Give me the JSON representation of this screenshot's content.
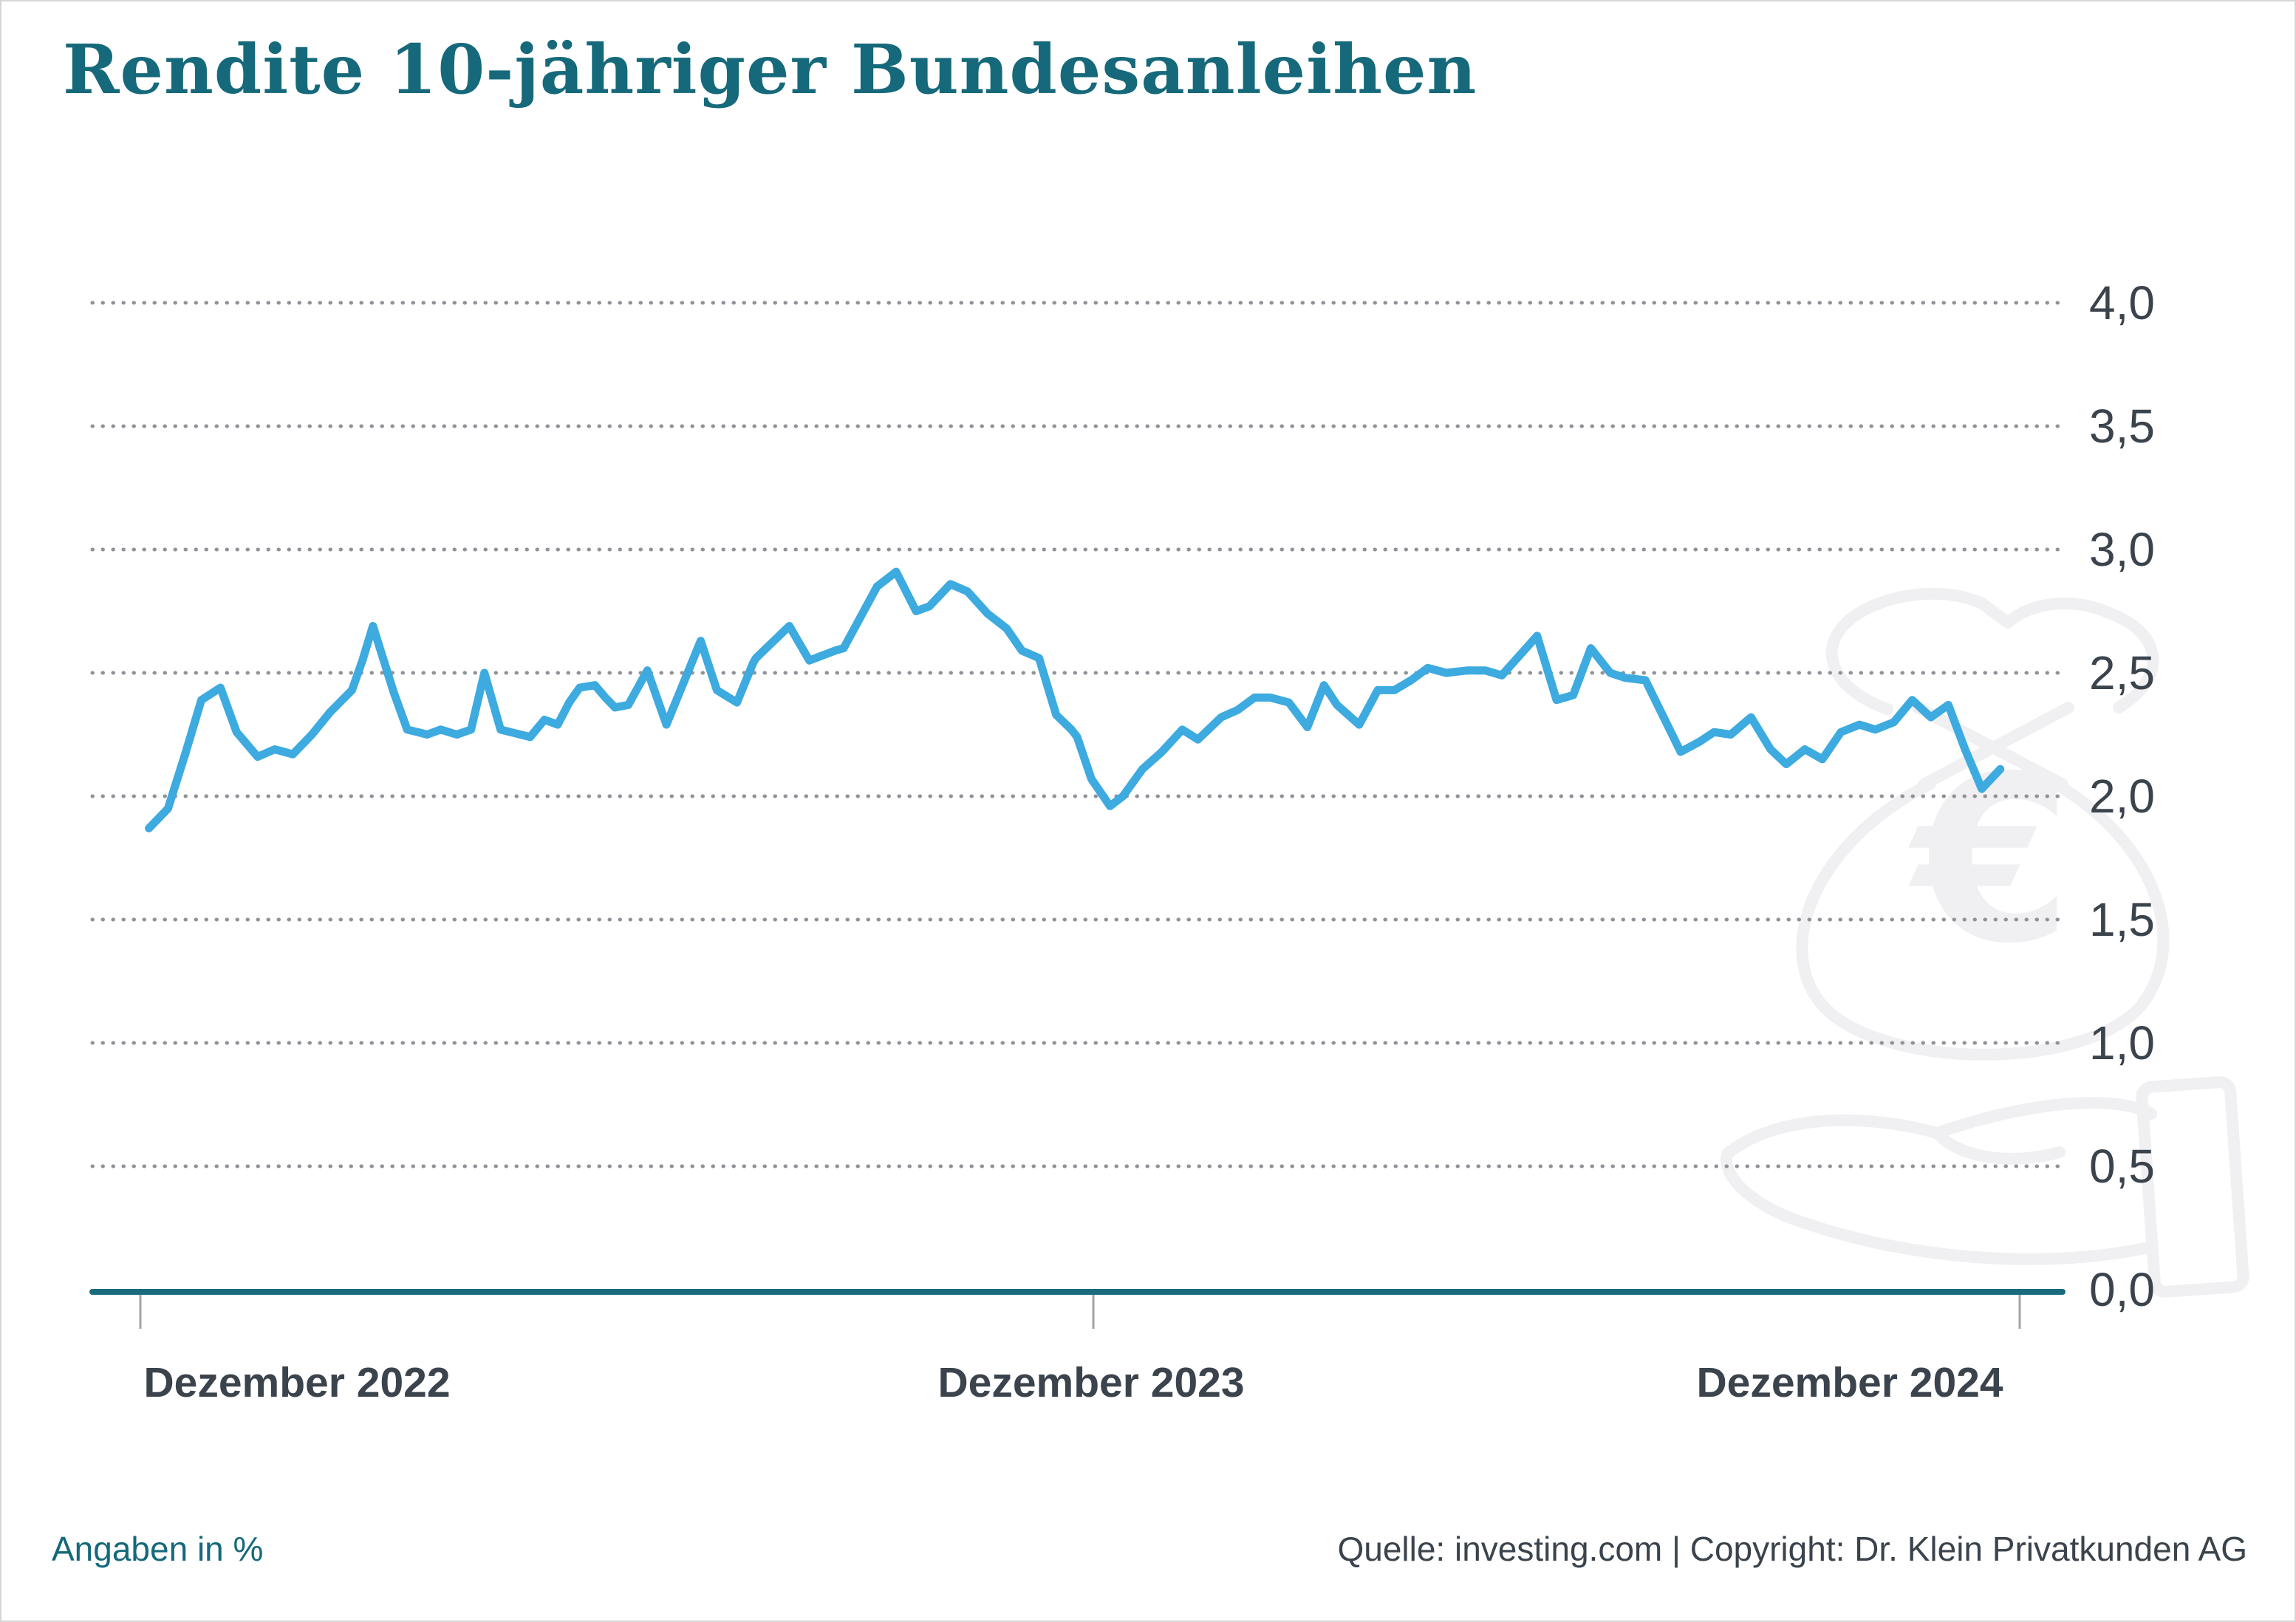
{
  "page": {
    "title": "Rendite 10-jähriger Bundesanleihen"
  },
  "footer": {
    "left_note": "Angaben in %",
    "source": "Quelle: investing.com | Copyright: Dr. Klein Privatkunden AG"
  },
  "colors": {
    "title_teal": "#15697A",
    "line_blue": "#3DAAE0",
    "axis_teal": "#1A6B7D",
    "label_dark": "#3B434C",
    "grid_dot_gray": "#8F9398",
    "tick_gray": "#A0A4A9",
    "watermark_gray": "#F0F0F2",
    "background": "#FFFFFF"
  },
  "icons": {
    "watermark": "money-bag-euro-in-hand-icon",
    "euro_symbol": "€"
  },
  "chart_data": {
    "type": "line",
    "title": "Rendite 10-jähriger Bundesanleihen",
    "xlabel": "",
    "ylabel": "",
    "unit": "%",
    "unit_note": "Angaben in %",
    "legend": "none",
    "grid": "dotted-horizontal",
    "y_axis": {
      "min": 0,
      "max": 4,
      "step": 0.5,
      "tick_labels": [
        "4,0",
        "3,5",
        "3,0",
        "2,5",
        "2,0",
        "1,5",
        "1,0",
        "0,5",
        "0,0"
      ],
      "tick_values": [
        4,
        3.5,
        3,
        2.5,
        2,
        1.5,
        1,
        0.5,
        0
      ]
    },
    "x_axis": {
      "tick_labels": [
        "Dezember 2022",
        "Dezember 2023",
        "Dezember 2024"
      ],
      "tick_values_years": [
        0,
        1,
        2
      ]
    },
    "series": [
      {
        "name": "Rendite 10-jähriger Bundesanleihen in %",
        "points_t_years_value_pct": [
          [
            0.009,
            1.87
          ],
          [
            0.029,
            1.95
          ],
          [
            0.047,
            2.17
          ],
          [
            0.064,
            2.39
          ],
          [
            0.084,
            2.44
          ],
          [
            0.101,
            2.26
          ],
          [
            0.123,
            2.16
          ],
          [
            0.141,
            2.19
          ],
          [
            0.16,
            2.17
          ],
          [
            0.18,
            2.25
          ],
          [
            0.199,
            2.34
          ],
          [
            0.222,
            2.43
          ],
          [
            0.233,
            2.55
          ],
          [
            0.244,
            2.69
          ],
          [
            0.266,
            2.42
          ],
          [
            0.28,
            2.27
          ],
          [
            0.291,
            2.26
          ],
          [
            0.301,
            2.25
          ],
          [
            0.315,
            2.27
          ],
          [
            0.332,
            2.25
          ],
          [
            0.347,
            2.27
          ],
          [
            0.361,
            2.5
          ],
          [
            0.378,
            2.27
          ],
          [
            0.409,
            2.24
          ],
          [
            0.424,
            2.31
          ],
          [
            0.438,
            2.29
          ],
          [
            0.45,
            2.38
          ],
          [
            0.461,
            2.44
          ],
          [
            0.477,
            2.45
          ],
          [
            0.488,
            2.4
          ],
          [
            0.498,
            2.36
          ],
          [
            0.512,
            2.37
          ],
          [
            0.532,
            2.51
          ],
          [
            0.552,
            2.29
          ],
          [
            0.588,
            2.63
          ],
          [
            0.605,
            2.43
          ],
          [
            0.626,
            2.38
          ],
          [
            0.643,
            2.54
          ],
          [
            0.646,
            2.56
          ],
          [
            0.681,
            2.69
          ],
          [
            0.702,
            2.55
          ],
          [
            0.729,
            2.59
          ],
          [
            0.738,
            2.6
          ],
          [
            0.773,
            2.85
          ],
          [
            0.793,
            2.91
          ],
          [
            0.814,
            2.75
          ],
          [
            0.828,
            2.77
          ],
          [
            0.85,
            2.86
          ],
          [
            0.868,
            2.83
          ],
          [
            0.889,
            2.74
          ],
          [
            0.909,
            2.68
          ],
          [
            0.925,
            2.59
          ],
          [
            0.943,
            2.56
          ],
          [
            0.961,
            2.33
          ],
          [
            0.977,
            2.27
          ],
          [
            0.983,
            2.24
          ],
          [
            0.998,
            2.07
          ],
          [
            1.018,
            1.96
          ],
          [
            1.032,
            2.0
          ],
          [
            1.053,
            2.11
          ],
          [
            1.074,
            2.18
          ],
          [
            1.096,
            2.27
          ],
          [
            1.113,
            2.23
          ],
          [
            1.138,
            2.32
          ],
          [
            1.156,
            2.35
          ],
          [
            1.174,
            2.4
          ],
          [
            1.191,
            2.4
          ],
          [
            1.211,
            2.38
          ],
          [
            1.231,
            2.28
          ],
          [
            1.249,
            2.45
          ],
          [
            1.263,
            2.37
          ],
          [
            1.287,
            2.29
          ],
          [
            1.307,
            2.43
          ],
          [
            1.325,
            2.43
          ],
          [
            1.343,
            2.47
          ],
          [
            1.361,
            2.52
          ],
          [
            1.381,
            2.5
          ],
          [
            1.404,
            2.51
          ],
          [
            1.423,
            2.51
          ],
          [
            1.441,
            2.49
          ],
          [
            1.479,
            2.65
          ],
          [
            1.5,
            2.39
          ],
          [
            1.518,
            2.41
          ],
          [
            1.537,
            2.6
          ],
          [
            1.558,
            2.5
          ],
          [
            1.574,
            2.48
          ],
          [
            1.596,
            2.47
          ],
          [
            1.634,
            2.18
          ],
          [
            1.654,
            2.22
          ],
          [
            1.67,
            2.26
          ],
          [
            1.688,
            2.25
          ],
          [
            1.71,
            2.32
          ],
          [
            1.731,
            2.19
          ],
          [
            1.748,
            2.13
          ],
          [
            1.768,
            2.19
          ],
          [
            1.787,
            2.15
          ],
          [
            1.807,
            2.26
          ],
          [
            1.827,
            2.29
          ],
          [
            1.844,
            2.27
          ],
          [
            1.864,
            2.3
          ],
          [
            1.884,
            2.39
          ],
          [
            1.904,
            2.32
          ],
          [
            1.923,
            2.37
          ],
          [
            1.941,
            2.19
          ],
          [
            1.959,
            2.03
          ],
          [
            1.979,
            2.11
          ]
        ]
      }
    ]
  }
}
